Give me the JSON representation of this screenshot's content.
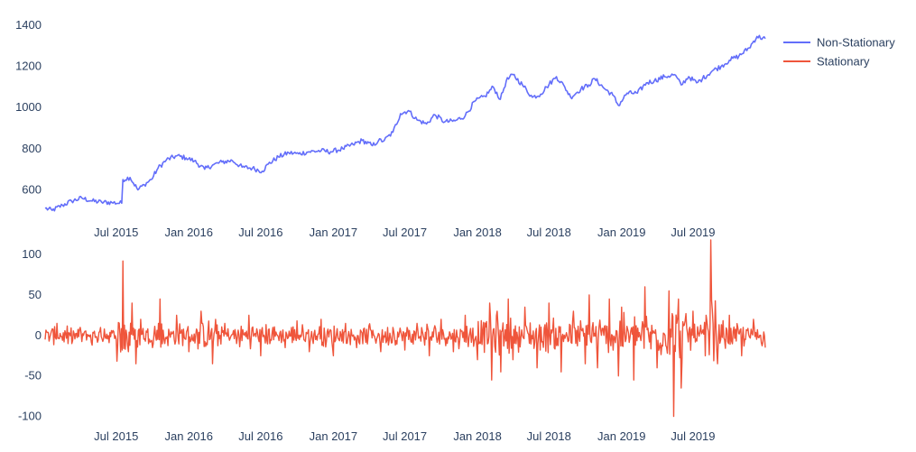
{
  "chart_data": [
    {
      "type": "line",
      "ylim": [
        470,
        1400
      ],
      "yticks": [
        600,
        800,
        1000,
        1200,
        1400
      ],
      "xlim": [
        "2015-01-02",
        "2019-12-31"
      ],
      "xticks": [
        {
          "date": "2015-07-01",
          "label": "Jul 2015"
        },
        {
          "date": "2016-01-01",
          "label": "Jan 2016"
        },
        {
          "date": "2016-07-01",
          "label": "Jul 2016"
        },
        {
          "date": "2017-01-01",
          "label": "Jan 2017"
        },
        {
          "date": "2017-07-01",
          "label": "Jul 2017"
        },
        {
          "date": "2018-01-01",
          "label": "Jan 2018"
        },
        {
          "date": "2018-07-01",
          "label": "Jul 2018"
        },
        {
          "date": "2019-01-01",
          "label": "Jan 2019"
        },
        {
          "date": "2019-07-01",
          "label": "Jul 2019"
        }
      ],
      "series": [
        {
          "name": "Non-Stationary",
          "color": "#636efa",
          "x": [
            "2015-01-02",
            "2015-01-20",
            "2015-02-15",
            "2015-03-10",
            "2015-04-05",
            "2015-05-01",
            "2015-05-25",
            "2015-06-20",
            "2015-07-15",
            "2015-07-18",
            "2015-08-05",
            "2015-08-25",
            "2015-09-10",
            "2015-09-28",
            "2015-10-15",
            "2015-11-05",
            "2015-12-01",
            "2015-12-25",
            "2016-01-15",
            "2016-02-10",
            "2016-03-01",
            "2016-03-25",
            "2016-04-20",
            "2016-05-15",
            "2016-06-10",
            "2016-07-05",
            "2016-07-20",
            "2016-08-15",
            "2016-09-10",
            "2016-10-05",
            "2016-11-01",
            "2016-12-01",
            "2016-12-25",
            "2017-01-25",
            "2017-02-20",
            "2017-03-15",
            "2017-04-10",
            "2017-04-25",
            "2017-05-10",
            "2017-06-01",
            "2017-06-20",
            "2017-07-10",
            "2017-08-01",
            "2017-08-25",
            "2017-09-15",
            "2017-10-10",
            "2017-11-05",
            "2017-12-01",
            "2017-12-25",
            "2018-01-20",
            "2018-02-10",
            "2018-02-28",
            "2018-03-15",
            "2018-04-01",
            "2018-04-25",
            "2018-05-20",
            "2018-06-10",
            "2018-06-25",
            "2018-07-20",
            "2018-08-10",
            "2018-08-25",
            "2018-09-20",
            "2018-10-10",
            "2018-10-25",
            "2018-11-20",
            "2018-12-10",
            "2018-12-24",
            "2019-01-15",
            "2019-02-10",
            "2019-03-05",
            "2019-03-25",
            "2019-04-20",
            "2019-05-15",
            "2019-06-01",
            "2019-06-20",
            "2019-07-10",
            "2019-07-25",
            "2019-08-20",
            "2019-09-10",
            "2019-10-01",
            "2019-10-25",
            "2019-11-20",
            "2019-12-10",
            "2019-12-31"
          ],
          "values": [
            510,
            500,
            525,
            545,
            560,
            545,
            540,
            538,
            535,
            650,
            660,
            600,
            625,
            650,
            705,
            745,
            765,
            755,
            740,
            700,
            720,
            735,
            742,
            710,
            705,
            690,
            725,
            760,
            780,
            775,
            785,
            790,
            785,
            800,
            820,
            840,
            815,
            838,
            840,
            880,
            970,
            985,
            940,
            920,
            965,
            930,
            935,
            960,
            1030,
            1055,
            1100,
            1040,
            1130,
            1160,
            1110,
            1050,
            1065,
            1100,
            1150,
            1100,
            1050,
            1090,
            1110,
            1140,
            1090,
            1060,
            1010,
            1070,
            1070,
            1120,
            1130,
            1150,
            1160,
            1110,
            1150,
            1120,
            1140,
            1180,
            1200,
            1230,
            1250,
            1290,
            1345,
            1335
          ]
        }
      ]
    },
    {
      "type": "line",
      "ylim": [
        -105,
        118
      ],
      "yticks": [
        -100,
        -50,
        0,
        50,
        100
      ],
      "xlim": [
        "2015-01-02",
        "2019-12-31"
      ],
      "xticks": [
        {
          "date": "2015-07-01",
          "label": "Jul 2015"
        },
        {
          "date": "2016-01-01",
          "label": "Jan 2016"
        },
        {
          "date": "2016-07-01",
          "label": "Jul 2016"
        },
        {
          "date": "2017-01-01",
          "label": "Jan 2017"
        },
        {
          "date": "2017-07-01",
          "label": "Jul 2017"
        },
        {
          "date": "2018-01-01",
          "label": "Jan 2018"
        },
        {
          "date": "2018-07-01",
          "label": "Jul 2018"
        },
        {
          "date": "2019-01-01",
          "label": "Jan 2019"
        },
        {
          "date": "2019-07-01",
          "label": "Jul 2019"
        }
      ],
      "series": [
        {
          "name": "Stationary",
          "color": "#ef553b",
          "x": [
            "2015-01-02",
            "2015-02-01",
            "2015-03-01",
            "2015-04-01",
            "2015-05-01",
            "2015-06-01",
            "2015-07-01",
            "2015-07-18",
            "2015-08-01",
            "2015-08-10",
            "2015-08-20",
            "2015-09-01",
            "2015-10-01",
            "2015-10-20",
            "2015-11-01",
            "2015-12-01",
            "2016-01-01",
            "2016-02-01",
            "2016-03-01",
            "2016-04-01",
            "2016-05-01",
            "2016-06-01",
            "2016-07-01",
            "2016-08-01",
            "2016-09-01",
            "2016-10-01",
            "2016-11-01",
            "2016-12-01",
            "2017-01-01",
            "2017-02-01",
            "2017-03-01",
            "2017-04-01",
            "2017-05-01",
            "2017-06-01",
            "2017-07-01",
            "2017-08-01",
            "2017-09-01",
            "2017-10-01",
            "2017-11-01",
            "2017-12-01",
            "2018-01-01",
            "2018-02-01",
            "2018-02-06",
            "2018-02-20",
            "2018-03-01",
            "2018-03-20",
            "2018-04-01",
            "2018-05-01",
            "2018-06-01",
            "2018-07-01",
            "2018-08-01",
            "2018-09-01",
            "2018-10-01",
            "2018-10-11",
            "2018-11-01",
            "2018-12-01",
            "2018-12-24",
            "2019-01-01",
            "2019-02-01",
            "2019-03-01",
            "2019-04-01",
            "2019-05-01",
            "2019-05-13",
            "2019-05-25",
            "2019-06-01",
            "2019-07-01",
            "2019-08-01",
            "2019-08-15",
            "2019-09-01",
            "2019-10-01",
            "2019-11-01",
            "2019-12-01",
            "2019-12-31"
          ],
          "values": [
            -5,
            15,
            -10,
            10,
            -12,
            8,
            -5,
            92,
            -20,
            40,
            -35,
            20,
            -15,
            45,
            -10,
            25,
            -20,
            30,
            -35,
            15,
            -10,
            25,
            -25,
            10,
            -15,
            18,
            -20,
            20,
            -25,
            15,
            -15,
            12,
            -20,
            10,
            -18,
            15,
            -25,
            20,
            -20,
            25,
            -30,
            40,
            -55,
            30,
            -45,
            45,
            -30,
            35,
            -40,
            40,
            -45,
            30,
            -35,
            50,
            -40,
            45,
            -50,
            35,
            -55,
            60,
            -40,
            55,
            -100,
            45,
            -65,
            30,
            -25,
            118,
            -35,
            25,
            -25,
            20,
            -15
          ]
        }
      ]
    }
  ],
  "legend": [
    {
      "name": "Non-Stationary",
      "color": "#636efa"
    },
    {
      "name": "Stationary",
      "color": "#ef553b"
    }
  ]
}
